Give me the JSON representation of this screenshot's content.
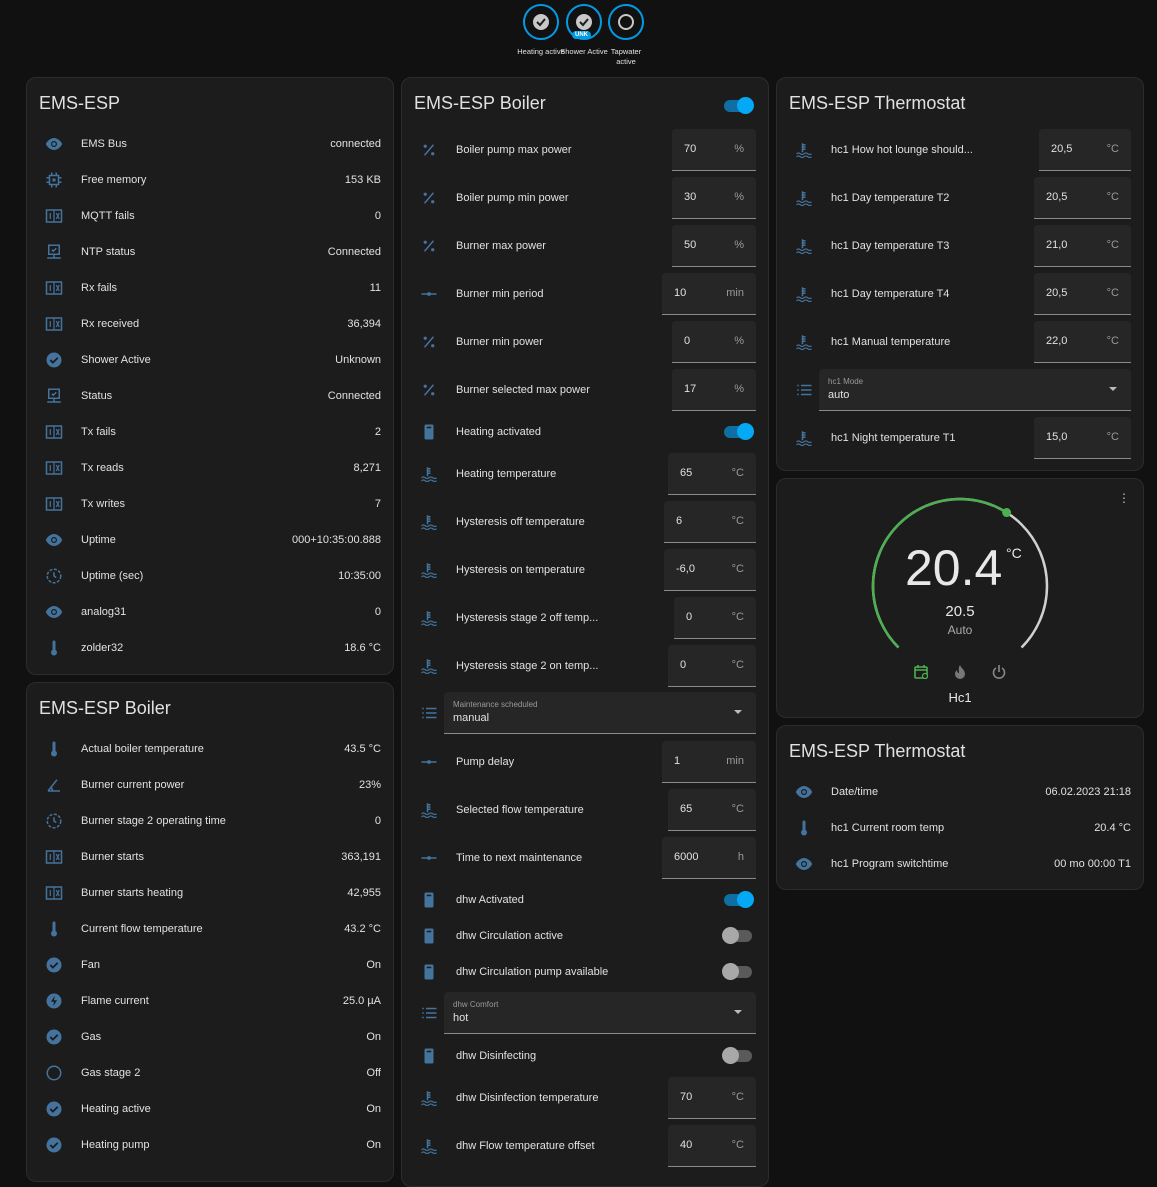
{
  "colors": {
    "accent": "#03a9f4",
    "icon": "#44739e",
    "heat_green": "#4caf50",
    "background": "#111111",
    "card": "#1c1c1c"
  },
  "badges": [
    {
      "label": "Heating active",
      "icon": "check-circle-icon",
      "state": "on"
    },
    {
      "label": "Shower Active",
      "icon": "check-circle-icon",
      "state": "on",
      "tag": "UNK"
    },
    {
      "label": "Tapwater active",
      "icon": "circle-outline-icon",
      "state": "off"
    }
  ],
  "system_card": {
    "title": "EMS-ESP",
    "rows": [
      {
        "icon": "eye",
        "label": "EMS Bus",
        "value": "connected"
      },
      {
        "icon": "chip",
        "label": "Free memory",
        "value": "153 KB"
      },
      {
        "icon": "counter",
        "label": "MQTT fails",
        "value": "0"
      },
      {
        "icon": "monitor",
        "label": "NTP status",
        "value": "Connected"
      },
      {
        "icon": "counter",
        "label": "Rx fails",
        "value": "11"
      },
      {
        "icon": "counter",
        "label": "Rx received",
        "value": "36,394"
      },
      {
        "icon": "check",
        "label": "Shower Active",
        "value": "Unknown"
      },
      {
        "icon": "monitor",
        "label": "Status",
        "value": "Connected"
      },
      {
        "icon": "counter",
        "label": "Tx fails",
        "value": "2"
      },
      {
        "icon": "counter",
        "label": "Tx reads",
        "value": "8,271"
      },
      {
        "icon": "counter",
        "label": "Tx writes",
        "value": "7"
      },
      {
        "icon": "eye",
        "label": "Uptime",
        "value": "000+10:35:00.888"
      },
      {
        "icon": "clock",
        "label": "Uptime (sec)",
        "value": "10:35:00"
      },
      {
        "icon": "eye",
        "label": "analog31",
        "value": "0"
      },
      {
        "icon": "thermometer",
        "label": "zolder32",
        "value": "18.6 °C"
      }
    ]
  },
  "boiler_sensors": {
    "title": "EMS-ESP Boiler",
    "rows": [
      {
        "icon": "thermometer",
        "label": "Actual boiler temperature",
        "value": "43.5 °C"
      },
      {
        "icon": "angle",
        "label": "Burner current power",
        "value": "23%"
      },
      {
        "icon": "clock",
        "label": "Burner stage 2 operating time",
        "value": "0"
      },
      {
        "icon": "counter",
        "label": "Burner starts",
        "value": "363,191"
      },
      {
        "icon": "counter",
        "label": "Burner starts heating",
        "value": "42,955"
      },
      {
        "icon": "thermometer",
        "label": "Current flow temperature",
        "value": "43.2 °C"
      },
      {
        "icon": "check",
        "label": "Fan",
        "value": "On"
      },
      {
        "icon": "flash",
        "label": "Flame current",
        "value": "25.0 µA"
      },
      {
        "icon": "check",
        "label": "Gas",
        "value": "On"
      },
      {
        "icon": "circle",
        "label": "Gas stage 2",
        "value": "Off"
      },
      {
        "icon": "check",
        "label": "Heating active",
        "value": "On"
      },
      {
        "icon": "check",
        "label": "Heating pump",
        "value": "On"
      }
    ]
  },
  "boiler_controls": {
    "title": "EMS-ESP Boiler",
    "header_toggle": true,
    "rows": [
      {
        "type": "input",
        "icon": "percent",
        "label": "Boiler pump max power",
        "value": "70",
        "unit": "%"
      },
      {
        "type": "input",
        "icon": "percent",
        "label": "Boiler pump min power",
        "value": "30",
        "unit": "%"
      },
      {
        "type": "input",
        "icon": "percent",
        "label": "Burner max power",
        "value": "50",
        "unit": "%"
      },
      {
        "type": "input",
        "icon": "slider",
        "label": "Burner min period",
        "value": "10",
        "unit": "min"
      },
      {
        "type": "input",
        "icon": "percent",
        "label": "Burner min power",
        "value": "0",
        "unit": "%"
      },
      {
        "type": "input",
        "icon": "percent",
        "label": "Burner selected max power",
        "value": "17",
        "unit": "%"
      },
      {
        "type": "toggle",
        "icon": "boiler",
        "label": "Heating activated",
        "on": true
      },
      {
        "type": "input",
        "icon": "thermowater",
        "label": "Heating temperature",
        "value": "65",
        "unit": "°C"
      },
      {
        "type": "input",
        "icon": "thermowater",
        "label": "Hysteresis off temperature",
        "value": "6",
        "unit": "°C"
      },
      {
        "type": "input",
        "icon": "thermowater",
        "label": "Hysteresis on temperature",
        "value": "-6,0",
        "unit": "°C"
      },
      {
        "type": "input",
        "icon": "thermowater",
        "label": "Hysteresis stage 2 off temp...",
        "value": "0",
        "unit": "°C"
      },
      {
        "type": "input",
        "icon": "thermowater",
        "label": "Hysteresis stage 2 on temp...",
        "value": "0",
        "unit": "°C"
      },
      {
        "type": "select",
        "icon": "list",
        "label": "Maintenance scheduled",
        "value": "manual"
      },
      {
        "type": "input",
        "icon": "slider",
        "label": "Pump delay",
        "value": "1",
        "unit": "min"
      },
      {
        "type": "input",
        "icon": "thermowater",
        "label": "Selected flow temperature",
        "value": "65",
        "unit": "°C"
      },
      {
        "type": "input",
        "icon": "slider",
        "label": "Time to next maintenance",
        "value": "6000",
        "unit": "h"
      },
      {
        "type": "toggle",
        "icon": "boiler",
        "label": "dhw Activated",
        "on": true
      },
      {
        "type": "toggle",
        "icon": "boiler",
        "label": "dhw Circulation active",
        "on": false
      },
      {
        "type": "toggle",
        "icon": "boiler",
        "label": "dhw Circulation pump available",
        "on": false
      },
      {
        "type": "select",
        "icon": "list",
        "label": "dhw Comfort",
        "value": "hot"
      },
      {
        "type": "toggle",
        "icon": "boiler",
        "label": "dhw Disinfecting",
        "on": false
      },
      {
        "type": "input",
        "icon": "thermowater",
        "label": "dhw Disinfection temperature",
        "value": "70",
        "unit": "°C"
      },
      {
        "type": "input",
        "icon": "thermowater",
        "label": "dhw Flow temperature offset",
        "value": "40",
        "unit": "°C"
      }
    ]
  },
  "thermostat_controls": {
    "title": "EMS-ESP Thermostat",
    "rows": [
      {
        "type": "input",
        "icon": "thermowater",
        "label": "hc1 How hot lounge should...",
        "value": "20,5",
        "unit": "°C"
      },
      {
        "type": "input",
        "icon": "thermowater",
        "label": "hc1 Day temperature T2",
        "value": "20,5",
        "unit": "°C"
      },
      {
        "type": "input",
        "icon": "thermowater",
        "label": "hc1 Day temperature T3",
        "value": "21,0",
        "unit": "°C"
      },
      {
        "type": "input",
        "icon": "thermowater",
        "label": "hc1 Day temperature T4",
        "value": "20,5",
        "unit": "°C"
      },
      {
        "type": "input",
        "icon": "thermowater",
        "label": "hc1 Manual temperature",
        "value": "22,0",
        "unit": "°C"
      },
      {
        "type": "select",
        "icon": "list",
        "label": "hc1 Mode",
        "value": "auto"
      },
      {
        "type": "input",
        "icon": "thermowater",
        "label": "hc1 Night temperature T1",
        "value": "15,0",
        "unit": "°C"
      }
    ]
  },
  "climate": {
    "current": "20.4",
    "unit": "°C",
    "target": "20.5",
    "mode": "Auto",
    "name": "Hc1",
    "hvac_modes": [
      "auto-schedule-icon",
      "heat-icon",
      "off-icon"
    ],
    "active_mode": "auto"
  },
  "thermostat_sensors": {
    "title": "EMS-ESP Thermostat",
    "rows": [
      {
        "icon": "eye",
        "label": "Date/time",
        "value": "06.02.2023 21:18"
      },
      {
        "icon": "thermometer",
        "label": "hc1 Current room temp",
        "value": "20.4 °C"
      },
      {
        "icon": "eye",
        "label": "hc1 Program switchtime",
        "value": "00 mo 00:00 T1"
      }
    ]
  }
}
